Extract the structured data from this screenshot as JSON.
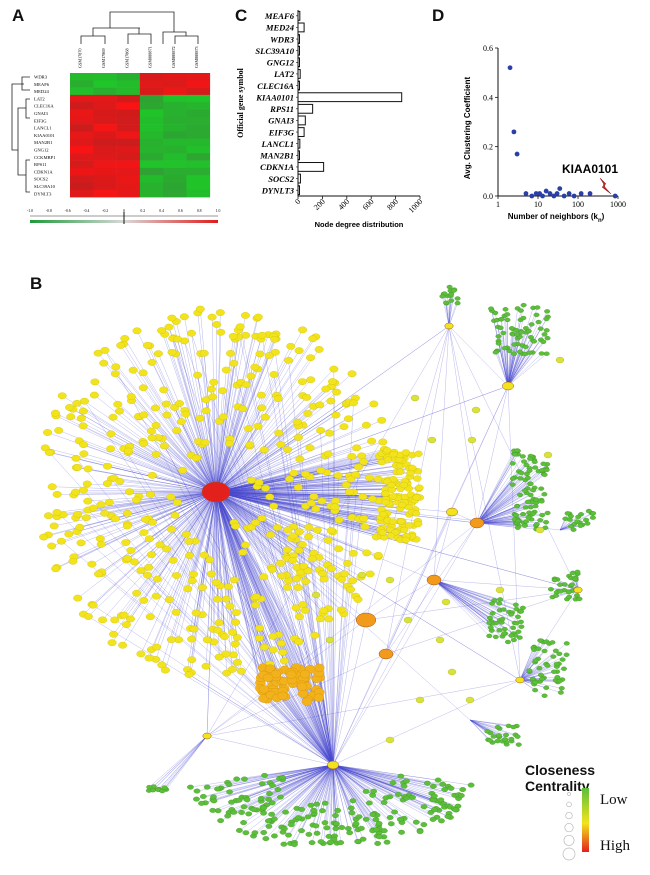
{
  "panels": {
    "a": "A",
    "b": "B",
    "c": "C",
    "d": "D"
  },
  "heatmap": {
    "columns": [
      "GSM17870",
      "GSM17869",
      "GSM17868",
      "GSM888871",
      "GSM888872",
      "GSM888873"
    ],
    "rows": [
      "WDR3",
      "MEAF6",
      "MED24",
      "LAT2",
      "CLEC16A",
      "GNAI3",
      "EIF3G",
      "LANCL1",
      "KIAA0101",
      "MAN2B1",
      "GNG12",
      "CCKMBP1",
      "RPS11",
      "CDKN1A",
      "SOCS2",
      "SLC39A10",
      "DYNLT3"
    ],
    "scale_ticks": [
      "-1.0",
      "-0.8",
      "-0.6",
      "-0.4",
      "-0.2",
      "0",
      "0.2",
      "0.4",
      "0.6",
      "0.8",
      "1.0"
    ],
    "colors": {
      "low": "#1e9a3a",
      "mid": "#111111",
      "high": "#e01b1b"
    }
  },
  "chart_data": [
    {
      "type": "bar",
      "orientation": "horizontal",
      "categories": [
        "MEAF6",
        "MED24",
        "WDR3",
        "SLC39A10",
        "GNG12",
        "LAT2",
        "CLEC16A",
        "KIAA0101",
        "RPS11",
        "GNAI3",
        "EIF3G",
        "LANCL1",
        "MAN2B1",
        "CDKN1A",
        "SOCS2",
        "DYNLT3"
      ],
      "values": [
        15,
        50,
        10,
        8,
        12,
        18,
        8,
        850,
        120,
        60,
        50,
        15,
        10,
        210,
        20,
        5
      ],
      "xlabel": "Node degree distribution",
      "ylabel": "Official gene symbol",
      "xticks": [
        "0",
        "200",
        "400",
        "600",
        "800",
        "1000"
      ],
      "xlim": [
        0,
        1000
      ]
    },
    {
      "type": "scatter",
      "x": [
        2,
        2.5,
        3,
        5,
        7,
        9,
        11,
        13,
        16,
        20,
        25,
        30,
        35,
        45,
        60,
        80,
        120,
        200,
        850
      ],
      "y": [
        0.52,
        0.26,
        0.17,
        0.01,
        0.0,
        0.01,
        0.01,
        0.0,
        0.02,
        0.01,
        0.0,
        0.01,
        0.03,
        0.0,
        0.01,
        0.0,
        0.01,
        0.01,
        0.0
      ],
      "xlabel": "Number of neighbors (k",
      "xlabel_sub": "n",
      "xlabel_close": ")",
      "ylabel": "Avg. Clustering Coefficient",
      "xscale": "log",
      "xticks": [
        "1",
        "10",
        "100",
        "1000"
      ],
      "yticks": [
        "0.0",
        "0.2",
        "0.4",
        "0.6"
      ],
      "ylim": [
        0,
        0.6
      ],
      "annotation": "KIAA0101",
      "marker_color": "#2b3fa8"
    }
  ],
  "network": {
    "legend_title": "Closeness Centrality",
    "legend_low": "Low",
    "legend_high": "High",
    "colors": {
      "low": "#5cbf3a",
      "mid": "#f2e41c",
      "high": "#e3201c",
      "edge": "#4a4ad0"
    }
  }
}
